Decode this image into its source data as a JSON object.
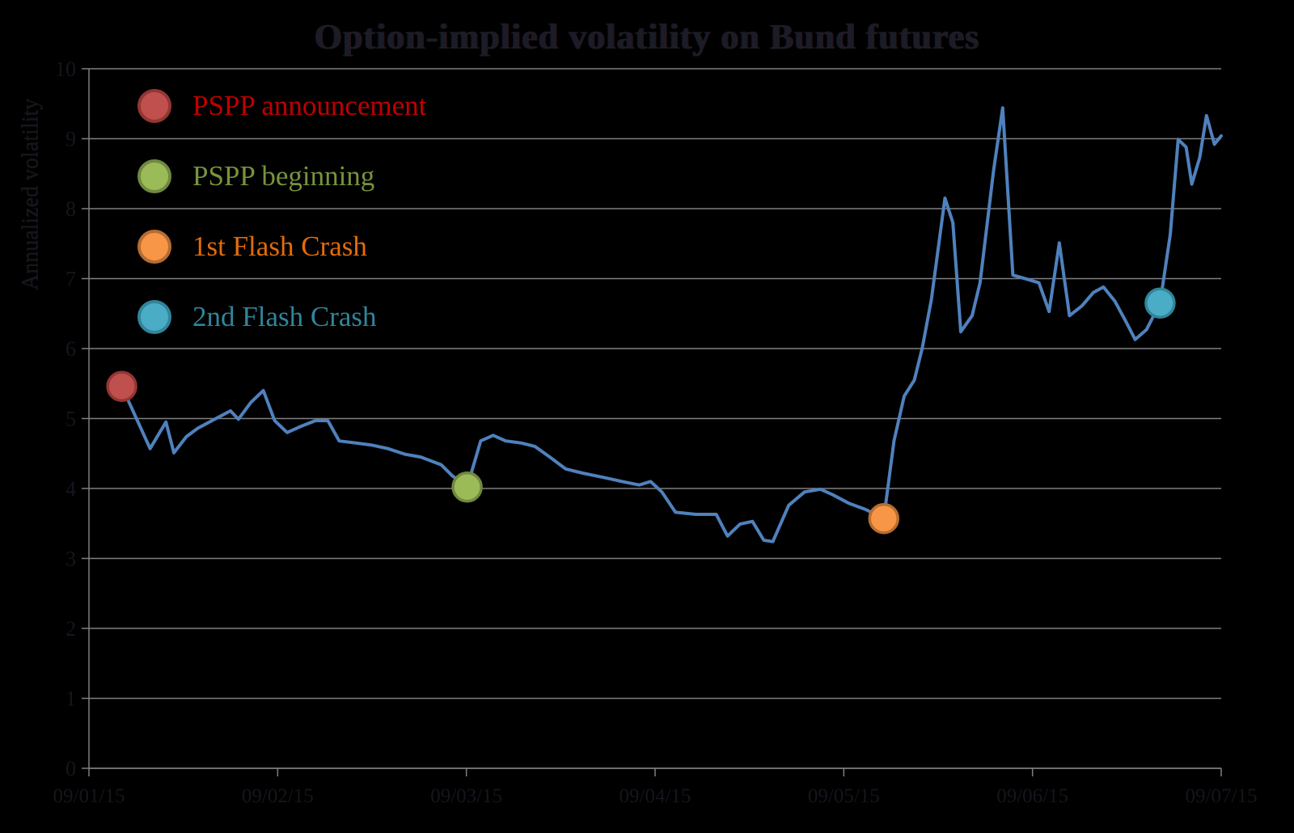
{
  "title": "Option-implied volatility on Bund futures",
  "y_axis_title": "Annualized volatility",
  "colors": {
    "background": "#000000",
    "gridline": "#7f7f7f",
    "axis_line": "#7f7f7f",
    "axis_text": "#15151d",
    "line": "#4F81BD"
  },
  "legend": {
    "items": [
      {
        "label": "PSPP announcement",
        "text_color": "#C00000",
        "fill": "#C0504D",
        "stroke": "#943634"
      },
      {
        "label": "PSPP beginning",
        "text_color": "#77933C",
        "fill": "#9BBB59",
        "stroke": "#71893F"
      },
      {
        "label": "1st Flash Crash",
        "text_color": "#E36C09",
        "fill": "#F79646",
        "stroke": "#B66D31"
      },
      {
        "label": "2nd Flash Crash",
        "text_color": "#31859B",
        "fill": "#4BACC6",
        "stroke": "#31859B"
      }
    ]
  },
  "chart_data": {
    "type": "line",
    "title": "Option-implied volatility on Bund futures",
    "xlabel": "",
    "ylabel": "Annualized volatility",
    "ylim": [
      0,
      10
    ],
    "grid": "horizontal",
    "legend_position": "top-left-inside",
    "y_ticks": [
      0,
      1,
      2,
      3,
      4,
      5,
      6,
      7,
      8,
      9,
      10
    ],
    "x_tick_labels": [
      "09/01/15",
      "09/02/15",
      "09/03/15",
      "09/04/15",
      "09/05/15",
      "09/06/15",
      "09/07/15"
    ],
    "series": [
      {
        "name": "Option-implied volatility",
        "color": "#4F81BD",
        "points": [
          [
            2.9,
            5.46
          ],
          [
            5.4,
            4.57
          ],
          [
            6.8,
            4.95
          ],
          [
            7.5,
            4.51
          ],
          [
            8.6,
            4.74
          ],
          [
            9.6,
            4.86
          ],
          [
            11.1,
            4.99
          ],
          [
            12.5,
            5.11
          ],
          [
            13.2,
            4.99
          ],
          [
            14.3,
            5.23
          ],
          [
            15.4,
            5.4
          ],
          [
            16.4,
            4.97
          ],
          [
            17.5,
            4.8
          ],
          [
            18.6,
            4.88
          ],
          [
            20.0,
            4.97
          ],
          [
            21.1,
            4.97
          ],
          [
            22.1,
            4.68
          ],
          [
            23.6,
            4.65
          ],
          [
            25.0,
            4.62
          ],
          [
            26.4,
            4.57
          ],
          [
            27.9,
            4.49
          ],
          [
            29.3,
            4.45
          ],
          [
            31.1,
            4.34
          ],
          [
            32.1,
            4.18
          ],
          [
            33.4,
            4.02
          ],
          [
            34.6,
            4.68
          ],
          [
            35.7,
            4.76
          ],
          [
            36.8,
            4.68
          ],
          [
            38.2,
            4.65
          ],
          [
            39.4,
            4.6
          ],
          [
            40.7,
            4.45
          ],
          [
            42.1,
            4.28
          ],
          [
            43.6,
            4.22
          ],
          [
            45.4,
            4.16
          ],
          [
            47.1,
            4.1
          ],
          [
            48.6,
            4.05
          ],
          [
            49.6,
            4.1
          ],
          [
            50.6,
            3.95
          ],
          [
            51.8,
            3.66
          ],
          [
            53.6,
            3.63
          ],
          [
            55.4,
            3.63
          ],
          [
            56.4,
            3.32
          ],
          [
            57.5,
            3.49
          ],
          [
            58.6,
            3.53
          ],
          [
            59.6,
            3.26
          ],
          [
            60.4,
            3.24
          ],
          [
            61.8,
            3.76
          ],
          [
            63.2,
            3.95
          ],
          [
            64.6,
            3.99
          ],
          [
            65.7,
            3.91
          ],
          [
            67.1,
            3.79
          ],
          [
            68.6,
            3.7
          ],
          [
            70.2,
            3.57
          ],
          [
            71.1,
            4.68
          ],
          [
            72.0,
            5.32
          ],
          [
            72.9,
            5.55
          ],
          [
            73.6,
            6.01
          ],
          [
            74.4,
            6.7
          ],
          [
            75.6,
            8.15
          ],
          [
            76.3,
            7.8
          ],
          [
            77.0,
            6.24
          ],
          [
            78.0,
            6.47
          ],
          [
            78.7,
            6.94
          ],
          [
            79.9,
            8.55
          ],
          [
            80.7,
            9.44
          ],
          [
            81.6,
            7.05
          ],
          [
            82.9,
            6.99
          ],
          [
            83.9,
            6.94
          ],
          [
            84.8,
            6.53
          ],
          [
            85.7,
            7.51
          ],
          [
            86.6,
            6.47
          ],
          [
            87.7,
            6.61
          ],
          [
            88.7,
            6.8
          ],
          [
            89.6,
            6.88
          ],
          [
            90.6,
            6.68
          ],
          [
            91.6,
            6.38
          ],
          [
            92.4,
            6.13
          ],
          [
            93.4,
            6.27
          ],
          [
            94.6,
            6.65
          ],
          [
            95.5,
            7.63
          ],
          [
            96.2,
            8.99
          ],
          [
            96.9,
            8.88
          ],
          [
            97.4,
            8.35
          ],
          [
            98.1,
            8.73
          ],
          [
            98.7,
            9.33
          ],
          [
            99.4,
            8.92
          ],
          [
            100,
            9.04
          ]
        ]
      }
    ],
    "event_markers": [
      {
        "name": "pspp-announcement",
        "label": "PSPP announcement",
        "x": 2.9,
        "y": 5.46,
        "fill": "#C0504D",
        "stroke": "#943634"
      },
      {
        "name": "pspp-beginning",
        "label": "PSPP beginning",
        "x": 33.4,
        "y": 4.02,
        "fill": "#9BBB59",
        "stroke": "#71893F"
      },
      {
        "name": "first-flash-crash",
        "label": "1st Flash Crash",
        "x": 70.2,
        "y": 3.57,
        "fill": "#F79646",
        "stroke": "#B66D31"
      },
      {
        "name": "second-flash-crash",
        "label": "2nd Flash Crash",
        "x": 94.6,
        "y": 6.65,
        "fill": "#4BACC6",
        "stroke": "#31859B"
      }
    ]
  }
}
